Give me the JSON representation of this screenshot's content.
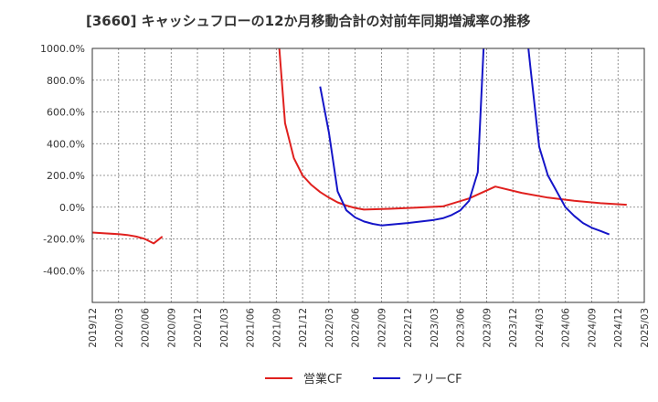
{
  "chart_data": {
    "type": "line",
    "title": "[3660]  キャッシュフローの12か月移動合計の対前年同期増減率の推移",
    "xlabel": "",
    "ylabel": "",
    "ylim": [
      -600,
      1000
    ],
    "y_ticks": [
      1000,
      800,
      600,
      400,
      200,
      0,
      -200,
      -400
    ],
    "y_tick_labels": [
      "1000.0%",
      "800.0%",
      "600.0%",
      "400.0%",
      "200.0%",
      "0.0%",
      "-200.0%",
      "-400.0%"
    ],
    "x_tick_labels": [
      "2019/12",
      "2020/03",
      "2020/06",
      "2020/09",
      "2020/12",
      "2021/03",
      "2021/06",
      "2021/09",
      "2021/12",
      "2022/03",
      "2022/06",
      "2022/09",
      "2022/12",
      "2023/03",
      "2023/06",
      "2023/09",
      "2023/12",
      "2024/03",
      "2024/06",
      "2024/09",
      "2024/12",
      "2025/03"
    ],
    "x_start": "2019/12",
    "x_end_month_index": 63,
    "grid": true,
    "legend_position": "bottom",
    "series": [
      {
        "name": "営業CF",
        "color": "#e0201e",
        "points": [
          [
            0,
            -160
          ],
          [
            3,
            -170
          ],
          [
            4,
            -175
          ],
          [
            5,
            -185
          ],
          [
            6,
            -200
          ],
          [
            7,
            -228
          ],
          [
            8,
            -185
          ],
          null,
          [
            21,
            1250
          ],
          [
            22,
            530
          ],
          [
            23,
            310
          ],
          [
            24,
            200
          ],
          [
            25,
            140
          ],
          [
            26,
            95
          ],
          [
            27,
            60
          ],
          [
            28,
            30
          ],
          [
            29,
            10
          ],
          [
            30,
            -5
          ],
          [
            31,
            -15
          ],
          [
            34,
            -10
          ],
          [
            37,
            -3
          ],
          [
            40,
            5
          ],
          [
            43,
            55
          ],
          [
            46,
            130
          ],
          [
            49,
            90
          ],
          [
            52,
            60
          ],
          [
            55,
            40
          ],
          [
            58,
            25
          ],
          [
            61,
            15
          ]
        ]
      },
      {
        "name": "フリーCF",
        "color": "#1515c8",
        "points": [
          [
            26,
            760
          ],
          [
            27,
            470
          ],
          [
            28,
            100
          ],
          [
            29,
            -20
          ],
          [
            30,
            -65
          ],
          [
            31,
            -90
          ],
          [
            32,
            -105
          ],
          [
            33,
            -115
          ],
          [
            36,
            -100
          ],
          [
            39,
            -80
          ],
          [
            40,
            -70
          ],
          [
            41,
            -50
          ],
          [
            42,
            -20
          ],
          [
            43,
            40
          ],
          [
            44,
            220
          ],
          [
            45,
            1400
          ],
          null,
          [
            49,
            1400
          ],
          [
            50,
            880
          ],
          [
            51,
            380
          ],
          [
            52,
            200
          ],
          [
            53,
            100
          ],
          [
            54,
            0
          ],
          [
            55,
            -55
          ],
          [
            56,
            -100
          ],
          [
            57,
            -130
          ],
          [
            58,
            -150
          ],
          [
            59,
            -172
          ]
        ]
      }
    ]
  }
}
